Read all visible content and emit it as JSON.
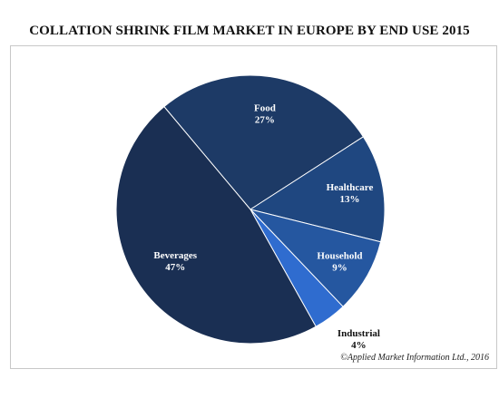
{
  "chart_data": {
    "type": "pie",
    "title": "COLLATION SHRINK FILM MARKET IN EUROPE BY END USE 2015",
    "slices": [
      {
        "label": "Food",
        "value": 27,
        "value_label": "27%",
        "color": "#1d3a66",
        "label_color": "#ffffff"
      },
      {
        "label": "Healthcare",
        "value": 13,
        "value_label": "13%",
        "color": "#1f4780",
        "label_color": "#ffffff"
      },
      {
        "label": "Household",
        "value": 9,
        "value_label": "9%",
        "color": "#2557a0",
        "label_color": "#ffffff"
      },
      {
        "label": "Industrial",
        "value": 4,
        "value_label": "4%",
        "color": "#2f6ccf",
        "label_color": "#111111"
      },
      {
        "label": "Beverages",
        "value": 47,
        "value_label": "47%",
        "color": "#1a2f53",
        "label_color": "#ffffff"
      }
    ],
    "slice_border_color": "#ffffff"
  },
  "footer": {
    "credit": "©Applied Market Information Ltd., 2016"
  }
}
